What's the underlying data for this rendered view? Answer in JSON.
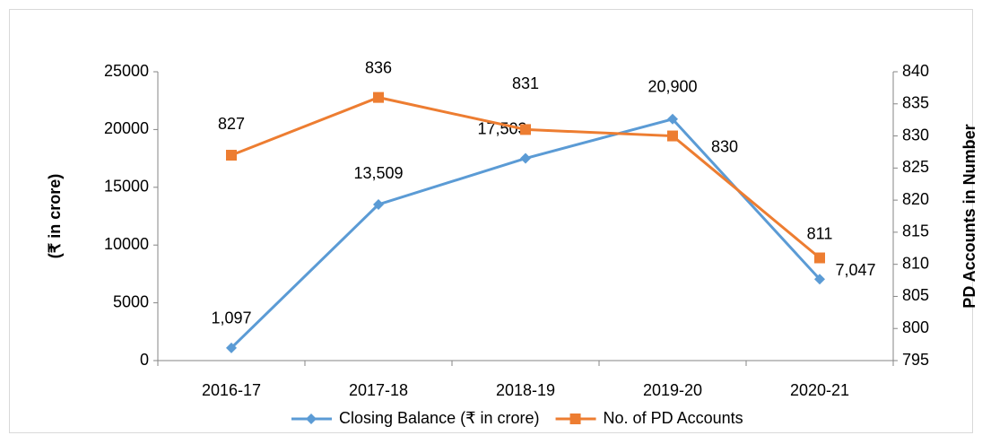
{
  "chart_data": {
    "type": "line",
    "categories": [
      "2016-17",
      "2017-18",
      "2018-19",
      "2019-20",
      "2020-21"
    ],
    "series": [
      {
        "name": "Closing Balance (₹ in crore)",
        "color": "#5b9bd5",
        "marker": "diamond",
        "values": [
          1097,
          13509,
          17503,
          20900,
          7047
        ],
        "value_labels": [
          "1,097",
          "13,509",
          "17,503",
          "20,900",
          "7,047"
        ]
      },
      {
        "name": "No. of PD Accounts",
        "color": "#ed7d31",
        "marker": "square",
        "axis": "y2",
        "values": [
          827,
          836,
          831,
          830,
          811
        ]
      }
    ],
    "ylabel": "(₹ in crore)",
    "y2label": "PD Accounts in Number",
    "ylim": [
      0,
      25000
    ],
    "yticks": [
      0,
      5000,
      10000,
      15000,
      20000,
      25000
    ],
    "y2lim": [
      795,
      840
    ],
    "y2ticks": [
      795,
      800,
      805,
      810,
      815,
      820,
      825,
      830,
      835,
      840
    ],
    "legend": "bottom",
    "grid": false
  }
}
